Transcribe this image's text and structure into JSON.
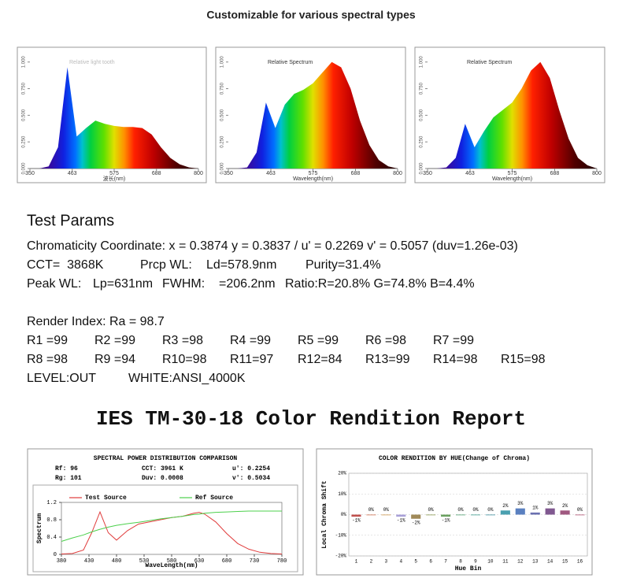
{
  "title": "Customizable for various spectral types",
  "test_params": {
    "heading": "Test Params",
    "rows": [
      [
        "Chromaticity Coordinate: x = 0.3874 y = 0.3837 / u' = 0.2269 v' = 0.5057 (duv=1.26e-03)"
      ],
      [
        "CCT=  3868K",
        "Prcp WL:",
        "Ld=578.9nm",
        "Purity=31.4%"
      ],
      [
        "Peak WL:",
        "Lp=631nm",
        "FWHM:",
        "=206.2nm",
        "Ratio:R=20.8% G=74.8% B=4.4%"
      ],
      [
        "Render Index: Ra = 98.7"
      ],
      [
        "R1 =99",
        "R2 =99",
        "R3 =98",
        "R4 =99",
        "R5 =99",
        "R6 =98",
        "R7 =99"
      ],
      [
        "R8 =98",
        "R9 =94",
        "R10=98",
        "R11=97",
        "R12=84",
        "R13=99",
        "R14=98",
        "R15=98"
      ],
      [
        "LEVEL:OUT",
        "WHITE:ANSI_4000K"
      ]
    ]
  },
  "report_title": "IES TM-30-18 Color Rendition Report",
  "chart_data": [
    {
      "type": "area",
      "title": "Relative light tooth",
      "x_label": "波长(nm)",
      "x": [
        350,
        375,
        400,
        425,
        450,
        475,
        500,
        525,
        550,
        575,
        600,
        625,
        650,
        675,
        700,
        725,
        750,
        775,
        800
      ],
      "values": [
        0,
        0,
        0.02,
        0.2,
        0.95,
        0.3,
        0.38,
        0.45,
        0.42,
        0.4,
        0.39,
        0.39,
        0.38,
        0.32,
        0.2,
        0.1,
        0.04,
        0.01,
        0
      ],
      "xlim": [
        350,
        800
      ],
      "xticks": [
        350,
        463,
        575,
        688,
        800
      ],
      "ylim": [
        0,
        1.05
      ],
      "yticks": [
        {
          "value": 0,
          "label": "0.000"
        },
        {
          "value": 0.25,
          "label": "0.250"
        },
        {
          "value": 0.5,
          "label": "0.500"
        },
        {
          "value": 0.75,
          "label": "0.750"
        },
        {
          "value": 1,
          "label": "1.000"
        }
      ]
    },
    {
      "type": "area",
      "title": "Relative Spectrum",
      "x_label": "Wavelength(nm)",
      "x": [
        350,
        375,
        400,
        425,
        450,
        475,
        500,
        525,
        550,
        575,
        600,
        625,
        650,
        675,
        700,
        725,
        750,
        775,
        800
      ],
      "values": [
        0,
        0,
        0.01,
        0.15,
        0.62,
        0.38,
        0.6,
        0.7,
        0.74,
        0.8,
        0.9,
        1.0,
        0.95,
        0.75,
        0.45,
        0.22,
        0.08,
        0.02,
        0
      ],
      "xlim": [
        350,
        800
      ],
      "xticks": [
        350,
        463,
        575,
        688,
        800
      ],
      "ylim": [
        0,
        1.05
      ],
      "yticks": [
        {
          "value": 0,
          "label": "0.000"
        },
        {
          "value": 0.25,
          "label": "0.250"
        },
        {
          "value": 0.5,
          "label": "0.500"
        },
        {
          "value": 0.75,
          "label": "0.750"
        },
        {
          "value": 1,
          "label": "1.000"
        }
      ]
    },
    {
      "type": "area",
      "title": "Relative Spectrum",
      "x_label": "Wavelength(nm)",
      "x": [
        350,
        375,
        400,
        425,
        450,
        475,
        500,
        525,
        550,
        575,
        600,
        625,
        650,
        675,
        700,
        725,
        750,
        775,
        800
      ],
      "values": [
        0,
        0,
        0.01,
        0.1,
        0.42,
        0.2,
        0.35,
        0.48,
        0.55,
        0.62,
        0.75,
        0.92,
        1.0,
        0.85,
        0.55,
        0.28,
        0.1,
        0.03,
        0
      ],
      "xlim": [
        350,
        800
      ],
      "xticks": [
        350,
        463,
        575,
        688,
        800
      ],
      "ylim": [
        0,
        1.05
      ],
      "yticks": [
        {
          "value": 0,
          "label": "0.000"
        },
        {
          "value": 0.25,
          "label": "0.250"
        },
        {
          "value": 0.5,
          "label": "0.500"
        },
        {
          "value": 0.75,
          "label": "0.750"
        },
        {
          "value": 1,
          "label": "1.000"
        }
      ]
    },
    {
      "type": "line",
      "title": "SPECTRAL POWER DISTRIBUTION COMPARISON",
      "info": [
        [
          "Rf: 96",
          "CCT: 3961 K",
          "u': 0.2254"
        ],
        [
          "Rg: 101",
          "Duv: 0.0008",
          "v': 0.5034"
        ]
      ],
      "x_label": "WaveLength(nm)",
      "y_label": "Spectrum",
      "x": [
        380,
        400,
        420,
        435,
        450,
        465,
        480,
        500,
        520,
        540,
        560,
        580,
        600,
        620,
        630,
        640,
        660,
        680,
        700,
        720,
        740,
        760,
        780
      ],
      "series": [
        {
          "name": "Test Source",
          "color": "#e03c3c",
          "values": [
            0.01,
            0.02,
            0.1,
            0.5,
            0.98,
            0.5,
            0.33,
            0.55,
            0.7,
            0.75,
            0.8,
            0.85,
            0.88,
            0.95,
            0.97,
            0.93,
            0.75,
            0.48,
            0.25,
            0.12,
            0.05,
            0.02,
            0.01
          ]
        },
        {
          "name": "Ref Source",
          "color": "#4cd04c",
          "values": [
            0.3,
            0.38,
            0.45,
            0.52,
            0.58,
            0.63,
            0.67,
            0.71,
            0.74,
            0.78,
            0.82,
            0.85,
            0.88,
            0.92,
            0.93,
            0.95,
            0.97,
            0.98,
            0.99,
            1.0,
            1.0,
            1.0,
            1.0
          ]
        }
      ],
      "xlim": [
        380,
        780
      ],
      "xticks": [
        380,
        430,
        480,
        530,
        580,
        630,
        680,
        730,
        780
      ],
      "ylim": [
        0,
        1.2
      ],
      "yticks": [
        0,
        0.4,
        0.8,
        1.2
      ]
    },
    {
      "type": "bar",
      "title": "COLOR RENDITION BY HUE(Change of Chroma)",
      "x_label": "Hue Bin",
      "y_label": "Local Chroma Shift",
      "categories": [
        "1",
        "2",
        "3",
        "4",
        "5",
        "6",
        "7",
        "8",
        "9",
        "10",
        "11",
        "12",
        "13",
        "14",
        "15",
        "16"
      ],
      "values": [
        -1,
        0,
        0,
        -1,
        -2,
        0,
        -1,
        0,
        0,
        0,
        2,
        3,
        1,
        3,
        2,
        0
      ],
      "value_labels": [
        "-1%",
        "0%",
        "0%",
        "-1%",
        "-2%",
        "0%",
        "-1%",
        "0%",
        "0%",
        "0%",
        "2%",
        "3%",
        "1%",
        "3%",
        "2%",
        "0%"
      ],
      "colors": [
        "#c0504d",
        "#d07050",
        "#d09a50",
        "#a9a0d8",
        "#a08a58",
        "#8a9a50",
        "#6aa060",
        "#50a070",
        "#40a090",
        "#4090a0",
        "#4aa0b0",
        "#5a80c0",
        "#6a70b0",
        "#805890",
        "#a05880",
        "#b05070"
      ],
      "ylim": [
        -20,
        20
      ],
      "yticks": [
        {
          "value": -20,
          "label": "-20%"
        },
        {
          "value": -10,
          "label": "-10%"
        },
        {
          "value": 0,
          "label": "0%"
        },
        {
          "value": 10,
          "label": "10%"
        },
        {
          "value": 20,
          "label": "20%"
        }
      ],
      "grid": true
    }
  ]
}
